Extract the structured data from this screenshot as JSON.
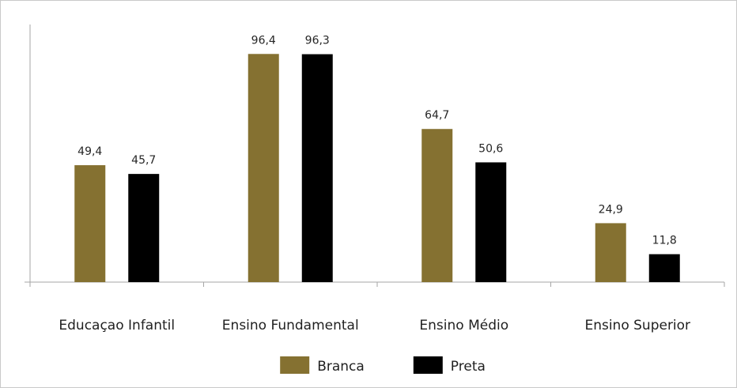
{
  "chart_data": {
    "type": "bar",
    "title": "",
    "xlabel": "",
    "ylabel": "",
    "ylim": [
      0,
      100
    ],
    "grid": false,
    "legend_position": "bottom",
    "categories": [
      "Educaçao Infantil",
      "Ensino Fundamental",
      "Ensino Médio",
      "Ensino Superior"
    ],
    "series": [
      {
        "name": "Branca",
        "color": "#857131",
        "values": [
          49.4,
          96.4,
          64.7,
          24.9
        ],
        "labels": [
          "49,4",
          "96,4",
          "64,7",
          "24,9"
        ]
      },
      {
        "name": "Preta",
        "color": "#000000",
        "values": [
          45.7,
          96.3,
          50.6,
          11.8
        ],
        "labels": [
          "45,7",
          "96,3",
          "50,6",
          "11,8"
        ]
      }
    ]
  }
}
